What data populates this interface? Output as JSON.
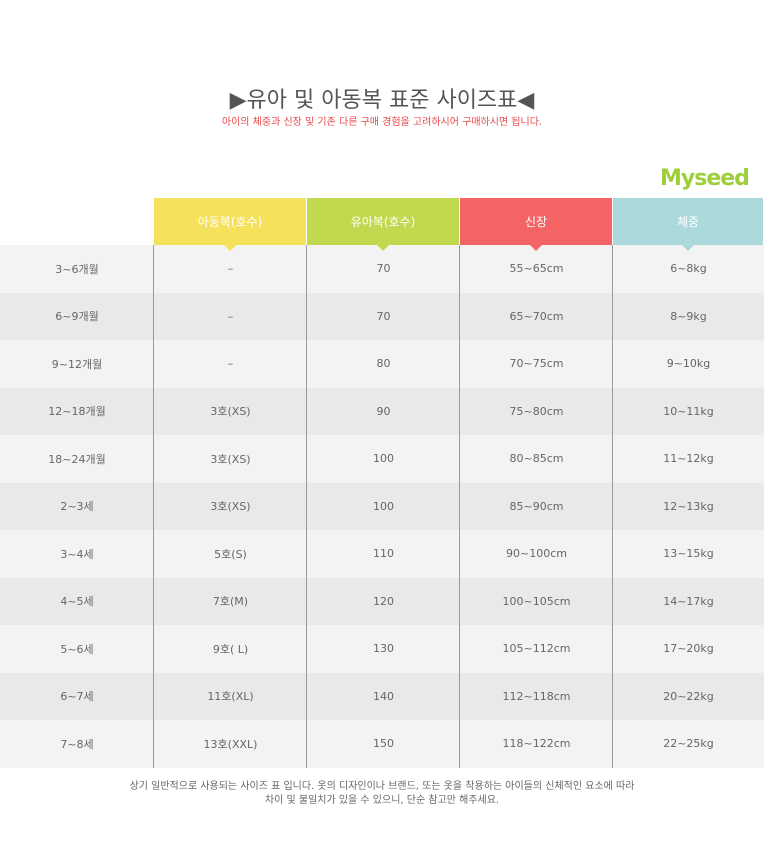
{
  "header": {
    "title": "▶유아 및 아동복 표준 사이즈표◀",
    "subtitle": "아이의 체중과 신장 및 기존 다른 구매 경험을 고려하시어 구매하시면 됩니다.",
    "logo": "Myseed"
  },
  "table": {
    "headers": [
      "아동복(호수)",
      "유아복(호수)",
      "신장",
      "체중"
    ],
    "rows": [
      [
        "3~6개월",
        "–",
        "70",
        "55~65cm",
        "6~8kg"
      ],
      [
        "6~9개월",
        "–",
        "70",
        "65~70cm",
        "8~9kg"
      ],
      [
        "9~12개월",
        "–",
        "80",
        "70~75cm",
        "9~10kg"
      ],
      [
        "12~18개월",
        "3호(XS)",
        "90",
        "75~80cm",
        "10~11kg"
      ],
      [
        "18~24개월",
        "3호(XS)",
        "100",
        "80~85cm",
        "11~12kg"
      ],
      [
        "2~3세",
        "3호(XS)",
        "100",
        "85~90cm",
        "12~13kg"
      ],
      [
        "3~4세",
        "5호(S)",
        "110",
        "90~100cm",
        "13~15kg"
      ],
      [
        "4~5세",
        "7호(M)",
        "120",
        "100~105cm",
        "14~17kg"
      ],
      [
        "5~6세",
        "9호( L)",
        "130",
        "105~112cm",
        "17~20kg"
      ],
      [
        "6~7세",
        "11호(XL)",
        "140",
        "112~118cm",
        "20~22kg"
      ],
      [
        "7~8세",
        "13호(XXL)",
        "150",
        "118~122cm",
        "22~25kg"
      ]
    ]
  },
  "footer": {
    "lines": [
      "상기 일반적으로 사용되는 사이즈 표 입니다. 옷의 디자인이나 브랜드, 또는 옷을 착용하는 아이들의 신체적인 요소에 따라",
      "차이 및 불일치가 있을 수 있으니, 단순 참고만 해주세요."
    ]
  }
}
